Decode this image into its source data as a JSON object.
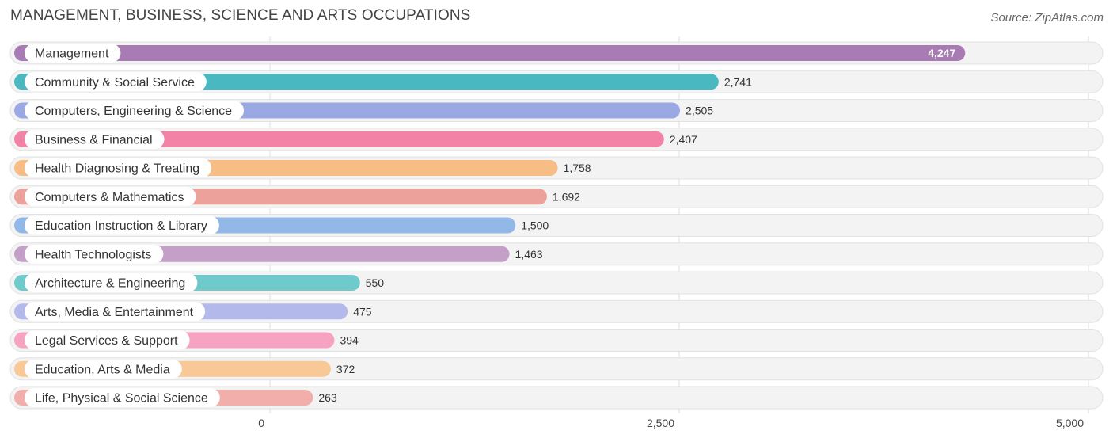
{
  "title": "MANAGEMENT, BUSINESS, SCIENCE AND ARTS OCCUPATIONS",
  "source": "Source: ZipAtlas.com",
  "chart_data": {
    "type": "bar",
    "orientation": "horizontal",
    "categories": [
      "Management",
      "Community & Social Service",
      "Computers, Engineering & Science",
      "Business & Financial",
      "Health Diagnosing & Treating",
      "Computers & Mathematics",
      "Education Instruction & Library",
      "Health Technologists",
      "Architecture & Engineering",
      "Arts, Media & Entertainment",
      "Legal Services & Support",
      "Education, Arts & Media",
      "Life, Physical & Social Science"
    ],
    "values": [
      4247,
      2741,
      2505,
      2407,
      1758,
      1692,
      1500,
      1463,
      550,
      475,
      394,
      372,
      263
    ],
    "value_labels": [
      "4,247",
      "2,741",
      "2,505",
      "2,407",
      "1,758",
      "1,692",
      "1,500",
      "1,463",
      "550",
      "475",
      "394",
      "372",
      "263"
    ],
    "colors": [
      "#a97bb5",
      "#4ab8c1",
      "#9aa8e4",
      "#f383a6",
      "#f8bd84",
      "#eca19b",
      "#91b8e6",
      "#c4a0c8",
      "#6fcacb",
      "#b4b9ec",
      "#f5a3c0",
      "#f8c897",
      "#f1aeaa"
    ],
    "xlim": [
      0,
      5000
    ],
    "xticks": [
      0,
      2500,
      5000
    ],
    "xtick_labels": [
      "0",
      "2,500",
      "5,000"
    ],
    "grid": true
  }
}
